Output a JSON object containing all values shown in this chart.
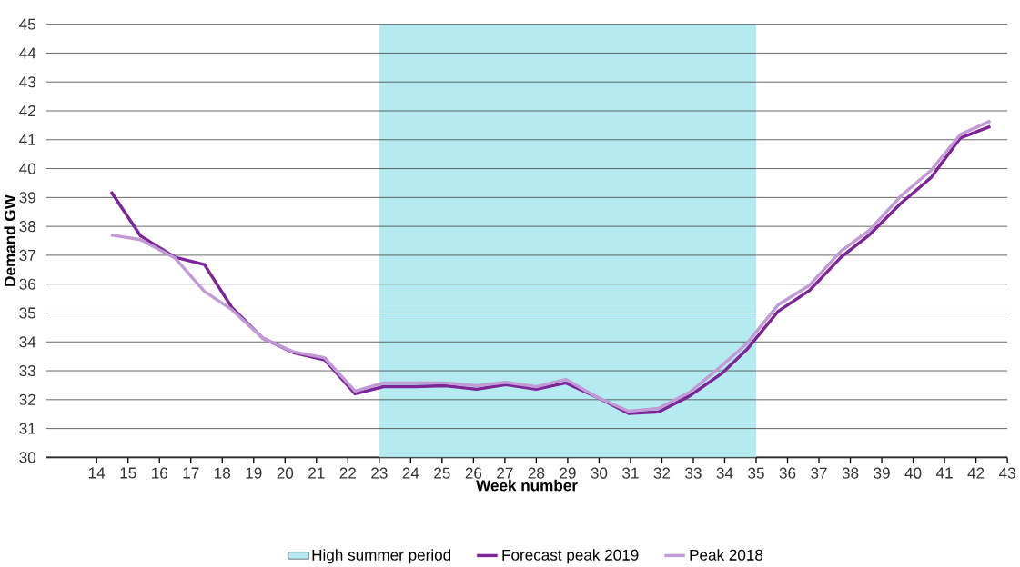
{
  "chart_data": {
    "type": "line",
    "xlabel": "Week number",
    "ylabel": "Demand GW",
    "x": [
      14.46,
      15.4,
      16.5,
      17.43,
      18.3,
      19.29,
      20.26,
      21.26,
      22.23,
      23.14,
      24.14,
      25.09,
      26.1,
      27.03,
      28,
      28.94,
      29.94,
      30.94,
      31.9,
      32.9,
      33.9,
      34.7,
      35.7,
      36.7,
      37.7,
      38.6,
      39.6,
      40.57,
      41.5,
      42.46
    ],
    "series": [
      {
        "name": "Forecast peak 2019",
        "color": "#7b2596",
        "values": [
          39.2,
          37.67,
          36.93,
          36.68,
          35.2,
          34.13,
          33.63,
          33.38,
          32.2,
          32.45,
          32.45,
          32.48,
          32.36,
          32.52,
          32.36,
          32.58,
          32.08,
          31.52,
          31.58,
          32.14,
          32.9,
          33.73,
          35.06,
          35.78,
          36.93,
          37.7,
          38.79,
          39.69,
          41.06,
          41.46
        ]
      },
      {
        "name": "Peak 2018",
        "color": "#c19ad6",
        "values": [
          37.7,
          37.54,
          36.9,
          35.75,
          35.12,
          34.13,
          33.66,
          33.45,
          32.3,
          32.58,
          32.58,
          32.58,
          32.48,
          32.6,
          32.45,
          32.7,
          32.08,
          31.6,
          31.7,
          32.27,
          33.17,
          33.94,
          35.28,
          35.96,
          37.14,
          37.86,
          39.04,
          39.94,
          41.18,
          41.65
        ]
      }
    ],
    "bands": [
      {
        "axis": "x",
        "from": 23,
        "to": 35,
        "label": "High summer period",
        "color": "#b5ebf0"
      }
    ],
    "xlim": [
      12.4,
      43
    ],
    "xticks": [
      14,
      15,
      16,
      17,
      18,
      19,
      20,
      21,
      22,
      23,
      24,
      25,
      26,
      27,
      28,
      29,
      30,
      31,
      32,
      33,
      34,
      35,
      36,
      37,
      38,
      39,
      40,
      41,
      42,
      43
    ],
    "ylim": [
      30,
      45
    ],
    "yticks": [
      30,
      31,
      32,
      33,
      34,
      35,
      36,
      37,
      38,
      39,
      40,
      41,
      42,
      43,
      44,
      45
    ],
    "grid": "y",
    "legend": "bottom",
    "marker": "none",
    "line_style": "solid"
  }
}
